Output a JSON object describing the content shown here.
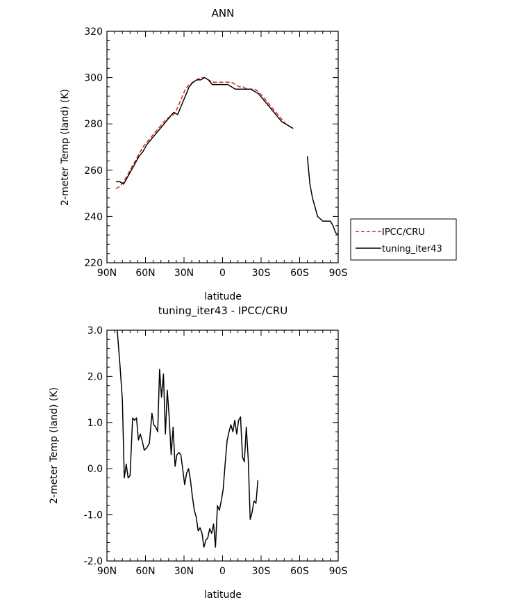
{
  "chart_data": [
    {
      "type": "line",
      "title": "ANN",
      "xlabel": "latitude",
      "ylabel": "2-meter Temp (land) (K)",
      "xlim": [
        90,
        -90
      ],
      "ylim": [
        220,
        320
      ],
      "xticks": [
        {
          "value": 90,
          "label": "90N"
        },
        {
          "value": 60,
          "label": "60N"
        },
        {
          "value": 30,
          "label": "30N"
        },
        {
          "value": 0,
          "label": "0"
        },
        {
          "value": -30,
          "label": "30S"
        },
        {
          "value": -60,
          "label": "60S"
        },
        {
          "value": -90,
          "label": "90S"
        }
      ],
      "yticks": [
        {
          "value": 320,
          "label": "320"
        },
        {
          "value": 300,
          "label": "300"
        },
        {
          "value": 280,
          "label": "280"
        },
        {
          "value": 260,
          "label": "260"
        },
        {
          "value": 240,
          "label": "240"
        },
        {
          "value": 220,
          "label": "220"
        }
      ],
      "legend_position": "right",
      "series": [
        {
          "name": "IPCC/CRU",
          "color": "#e02020",
          "dash": "dashed",
          "segments": [
            [
              [
                83,
                252
              ],
              [
                80,
                253
              ],
              [
                77,
                255
              ],
              [
                74,
                258
              ],
              [
                71,
                261
              ],
              [
                68,
                264
              ],
              [
                65,
                267
              ],
              [
                62,
                270
              ],
              [
                59,
                272
              ],
              [
                56,
                274
              ],
              [
                53,
                276
              ],
              [
                50,
                278
              ],
              [
                47,
                280
              ],
              [
                44,
                282
              ],
              [
                41,
                283
              ],
              [
                38,
                284
              ],
              [
                35,
                287
              ],
              [
                32,
                291
              ],
              [
                29,
                295
              ],
              [
                26,
                297
              ],
              [
                23,
                298
              ],
              [
                20,
                299
              ],
              [
                17,
                300
              ],
              [
                14,
                300
              ],
              [
                11,
                299
              ],
              [
                8,
                298
              ],
              [
                5,
                298
              ],
              [
                2,
                298
              ],
              [
                -1,
                298
              ],
              [
                -4,
                298
              ],
              [
                -7,
                298
              ],
              [
                -10,
                297
              ],
              [
                -13,
                296
              ],
              [
                -16,
                296
              ],
              [
                -19,
                295
              ],
              [
                -22,
                295
              ],
              [
                -25,
                295
              ],
              [
                -28,
                294
              ],
              [
                -31,
                292
              ],
              [
                -34,
                290
              ],
              [
                -37,
                288
              ],
              [
                -40,
                286
              ],
              [
                -43,
                284
              ],
              [
                -46,
                282
              ],
              [
                -49,
                280
              ],
              [
                -52,
                279
              ],
              [
                -55,
                278
              ]
            ]
          ]
        },
        {
          "name": "tuning_iter43",
          "color": "#000000",
          "dash": "solid",
          "segments": [
            [
              [
                83,
                255
              ],
              [
                80,
                255
              ],
              [
                77,
                254
              ],
              [
                74,
                257
              ],
              [
                71,
                260
              ],
              [
                68,
                263
              ],
              [
                65,
                266
              ],
              [
                62,
                268
              ],
              [
                59,
                271
              ],
              [
                56,
                273
              ],
              [
                53,
                275
              ],
              [
                50,
                277
              ],
              [
                47,
                279
              ],
              [
                44,
                281
              ],
              [
                41,
                283
              ],
              [
                38,
                285
              ],
              [
                35,
                284
              ],
              [
                32,
                288
              ],
              [
                29,
                292
              ],
              [
                26,
                296
              ],
              [
                23,
                298
              ],
              [
                20,
                299
              ],
              [
                17,
                299
              ],
              [
                14,
                300
              ],
              [
                11,
                299
              ],
              [
                8,
                297
              ],
              [
                5,
                297
              ],
              [
                2,
                297
              ],
              [
                -1,
                297
              ],
              [
                -4,
                297
              ],
              [
                -7,
                296
              ],
              [
                -10,
                295
              ],
              [
                -13,
                295
              ],
              [
                -16,
                295
              ],
              [
                -19,
                295
              ],
              [
                -22,
                295
              ],
              [
                -25,
                294
              ],
              [
                -28,
                293
              ],
              [
                -31,
                291
              ],
              [
                -34,
                289
              ],
              [
                -37,
                287
              ],
              [
                -40,
                285
              ],
              [
                -43,
                283
              ],
              [
                -46,
                281
              ],
              [
                -49,
                280
              ],
              [
                -52,
                279
              ],
              [
                -55,
                278
              ]
            ],
            [
              [
                -66,
                266
              ],
              [
                -68,
                254
              ],
              [
                -70,
                248
              ],
              [
                -72,
                244
              ],
              [
                -74,
                240
              ],
              [
                -76,
                239
              ],
              [
                -78,
                238
              ],
              [
                -80,
                238
              ],
              [
                -82,
                238
              ],
              [
                -84,
                238
              ],
              [
                -86,
                236
              ],
              [
                -88,
                233
              ],
              [
                -90,
                232
              ]
            ]
          ]
        }
      ]
    },
    {
      "type": "line",
      "title": "tuning_iter43 - IPCC/CRU",
      "xlabel": "latitude",
      "ylabel": "2-meter Temp (land) (K)",
      "xlim": [
        90,
        -90
      ],
      "ylim": [
        -2.0,
        3.0
      ],
      "xticks": [
        {
          "value": 90,
          "label": "90N"
        },
        {
          "value": 60,
          "label": "60N"
        },
        {
          "value": 30,
          "label": "30N"
        },
        {
          "value": 0,
          "label": "0"
        },
        {
          "value": -30,
          "label": "30S"
        },
        {
          "value": -60,
          "label": "60S"
        },
        {
          "value": -90,
          "label": "90S"
        }
      ],
      "yticks": [
        {
          "value": 3.0,
          "label": "3.0"
        },
        {
          "value": 2.0,
          "label": "2.0"
        },
        {
          "value": 1.0,
          "label": "1.0"
        },
        {
          "value": 0.0,
          "label": "0.0"
        },
        {
          "value": -1.0,
          "label": "-1.0"
        },
        {
          "value": -2.0,
          "label": "-2.0"
        }
      ],
      "series": [
        {
          "color": "#000000",
          "dash": "solid",
          "segments": [
            [
              [
                82,
                3.0
              ],
              [
                80,
                2.3
              ],
              [
                78,
                1.5
              ],
              [
                76.5,
                -0.2
              ],
              [
                75,
                0.1
              ],
              [
                73.5,
                -0.2
              ],
              [
                72,
                -0.15
              ],
              [
                70,
                1.1
              ],
              [
                68.5,
                1.05
              ],
              [
                67,
                1.1
              ],
              [
                65.5,
                0.62
              ],
              [
                64,
                0.75
              ],
              [
                62.5,
                0.6
              ],
              [
                61,
                0.4
              ],
              [
                59,
                0.45
              ],
              [
                57,
                0.55
              ],
              [
                55,
                1.2
              ],
              [
                53.5,
                0.95
              ],
              [
                52,
                0.9
              ],
              [
                50.5,
                0.8
              ],
              [
                49,
                2.15
              ],
              [
                47.5,
                1.55
              ],
              [
                46,
                2.05
              ],
              [
                44.5,
                0.75
              ],
              [
                43,
                1.7
              ],
              [
                41.5,
                1.1
              ],
              [
                40,
                0.3
              ],
              [
                38.5,
                0.9
              ],
              [
                37,
                0.05
              ],
              [
                35.5,
                0.3
              ],
              [
                34,
                0.35
              ],
              [
                32.5,
                0.3
              ],
              [
                31,
                0.0
              ],
              [
                29.5,
                -0.35
              ],
              [
                28,
                -0.1
              ],
              [
                26.5,
                0.0
              ],
              [
                25,
                -0.25
              ],
              [
                23.5,
                -0.6
              ],
              [
                22,
                -0.9
              ],
              [
                20.5,
                -1.05
              ],
              [
                19,
                -1.35
              ],
              [
                17.5,
                -1.28
              ],
              [
                16,
                -1.4
              ],
              [
                14.5,
                -1.7
              ],
              [
                13,
                -1.55
              ],
              [
                11.5,
                -1.5
              ],
              [
                10,
                -1.3
              ],
              [
                8.5,
                -1.4
              ],
              [
                7,
                -1.2
              ],
              [
                5.5,
                -1.7
              ],
              [
                4,
                -0.8
              ],
              [
                2.5,
                -0.9
              ],
              [
                1,
                -0.7
              ],
              [
                -0.5,
                -0.45
              ],
              [
                -2,
                0.1
              ],
              [
                -3.5,
                0.6
              ],
              [
                -5,
                0.8
              ],
              [
                -6.5,
                0.95
              ],
              [
                -8,
                0.8
              ],
              [
                -9.5,
                1.05
              ],
              [
                -11,
                0.75
              ],
              [
                -12.5,
                1.05
              ],
              [
                -14,
                1.12
              ],
              [
                -15.5,
                0.25
              ],
              [
                -17,
                0.15
              ],
              [
                -18.5,
                0.9
              ],
              [
                -20,
                0.2
              ],
              [
                -21.5,
                -1.1
              ],
              [
                -23,
                -0.95
              ],
              [
                -24.5,
                -0.7
              ],
              [
                -26,
                -0.75
              ],
              [
                -27.5,
                -0.25
              ]
            ]
          ]
        }
      ]
    }
  ]
}
